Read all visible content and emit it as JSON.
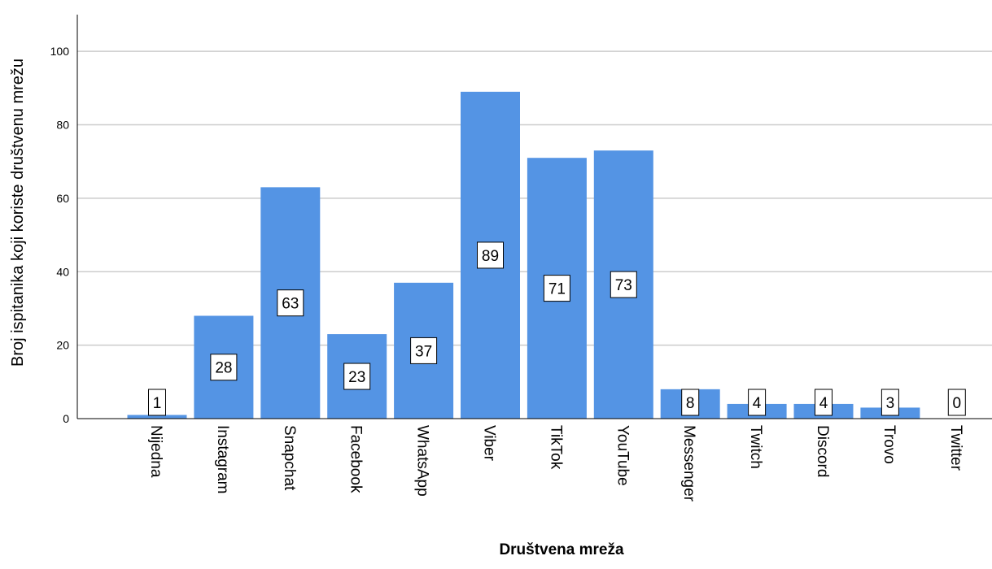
{
  "chart_data": {
    "type": "bar",
    "title": "",
    "xlabel": "Društvena mreža",
    "ylabel": "Broj ispitanika koji koriste društvenu mrežu",
    "categories": [
      "Nijedna",
      "Instagram",
      "Snapchat",
      "Facebook",
      "WhatsApp",
      "Viber",
      "TikTok",
      "YouTube",
      "Messenger",
      "Twitch",
      "Discord",
      "Trovo",
      "Twitter"
    ],
    "values": [
      1,
      28,
      63,
      23,
      37,
      89,
      71,
      73,
      8,
      4,
      4,
      3,
      0
    ],
    "data_labels": [
      "1",
      "28",
      "63",
      "23",
      "37",
      "89",
      "71",
      "73",
      "8",
      "4",
      "4",
      "3",
      "0"
    ],
    "yticks": [
      0,
      20,
      40,
      60,
      80,
      100
    ],
    "ylim": [
      0,
      110
    ],
    "grid": true,
    "legend": "none",
    "bar_color": "#5494e4",
    "grid_color": "#cccccc"
  }
}
